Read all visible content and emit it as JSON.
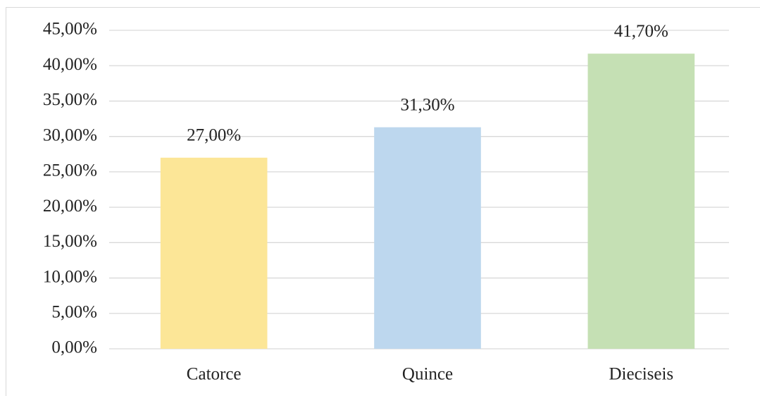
{
  "chart_data": {
    "type": "bar",
    "categories": [
      "Catorce",
      "Quince",
      "Dieciseis"
    ],
    "values": [
      27.0,
      31.3,
      41.7
    ],
    "value_labels": [
      "27,00%",
      "31,30%",
      "41,70%"
    ],
    "colors": [
      "#fce697",
      "#bdd7ee",
      "#c5e0b4"
    ],
    "ylim": [
      0,
      45
    ],
    "yticks": [
      {
        "value": 0,
        "label": "0,00%"
      },
      {
        "value": 5,
        "label": "5,00%"
      },
      {
        "value": 10,
        "label": "10,00%"
      },
      {
        "value": 15,
        "label": "15,00%"
      },
      {
        "value": 20,
        "label": "20,00%"
      },
      {
        "value": 25,
        "label": "25,00%"
      },
      {
        "value": 30,
        "label": "30,00%"
      },
      {
        "value": 35,
        "label": "35,00%"
      },
      {
        "value": 40,
        "label": "40,00%"
      },
      {
        "value": 45,
        "label": "45,00%"
      }
    ],
    "grid": true
  }
}
